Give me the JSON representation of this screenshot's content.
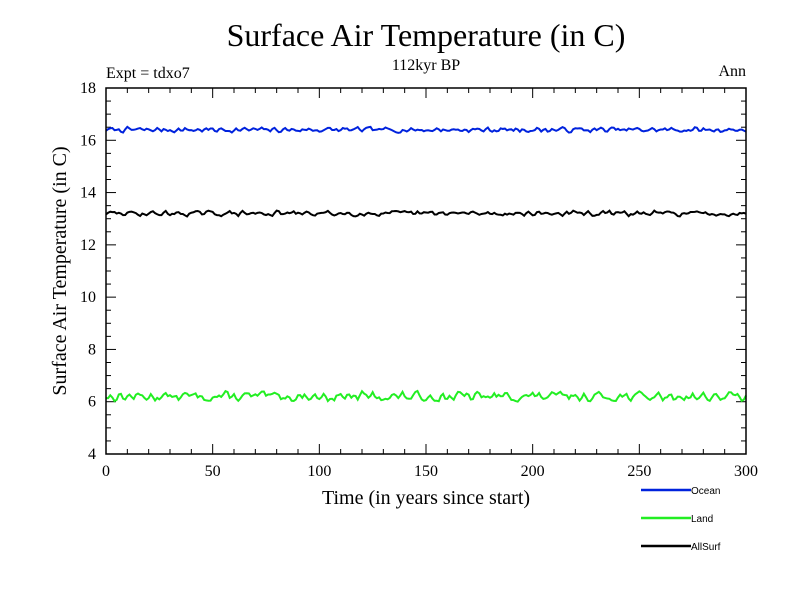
{
  "chart_data": {
    "type": "line",
    "title": "Surface Air Temperature (in C)",
    "subtitle": "112kyr BP",
    "experiment_label": "Expt = tdxo7",
    "period_label": "Ann",
    "xlabel": "Time (in years since start)",
    "ylabel": "Surface Air Temperature (in C)",
    "xlim": [
      0,
      300
    ],
    "ylim": [
      4,
      18
    ],
    "x_ticks": [
      0,
      50,
      100,
      150,
      200,
      250,
      300
    ],
    "y_ticks": [
      4,
      6,
      8,
      10,
      12,
      14,
      16,
      18
    ],
    "x_tick_labels": [
      "0",
      "50",
      "100",
      "150",
      "200",
      "250",
      "300"
    ],
    "y_tick_labels": [
      "4",
      "6",
      "8",
      "10",
      "12",
      "14",
      "16",
      "18"
    ],
    "grid": false,
    "legend_position": "bottom-right, below plot",
    "x_step": 1,
    "series": [
      {
        "name": "Ocean",
        "color": "#0022dd",
        "mean": 16.4,
        "amplitude": 0.12,
        "seed": 7,
        "x_start": 0,
        "x_end": 300
      },
      {
        "name": "Land",
        "color": "#22ee22",
        "mean": 6.2,
        "amplitude": 0.22,
        "seed": 13,
        "x_start": 0,
        "x_end": 300
      },
      {
        "name": "AllSurf",
        "color": "#000000",
        "mean": 13.2,
        "amplitude": 0.12,
        "seed": 29,
        "x_start": 0,
        "x_end": 300
      }
    ]
  }
}
